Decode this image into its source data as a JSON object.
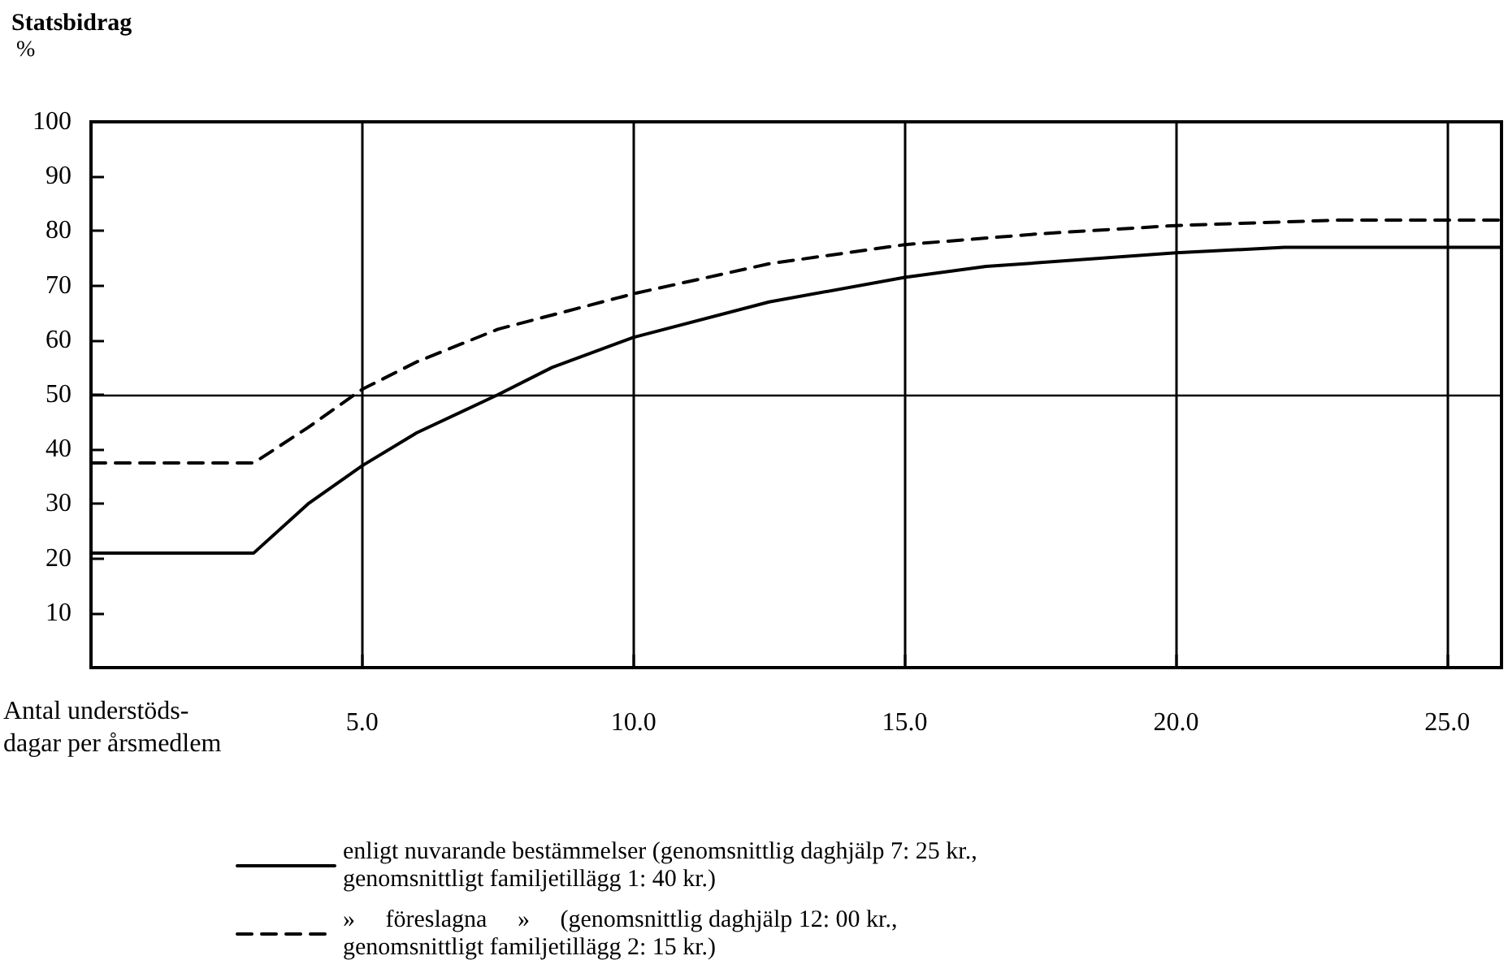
{
  "chart_data": {
    "type": "line",
    "title": "Statsbidrag",
    "ylabel": "%",
    "xlabel": "Antal understöds-\ndagar per årsmedlem",
    "xlim": [
      0,
      26
    ],
    "ylim": [
      0,
      100
    ],
    "xticks": [
      {
        "value": 5,
        "label": "5.0"
      },
      {
        "value": 10,
        "label": "10.0"
      },
      {
        "value": 15,
        "label": "15.0"
      },
      {
        "value": 20,
        "label": "20.0"
      },
      {
        "value": 25,
        "label": "25.0"
      }
    ],
    "yticks": [
      10,
      20,
      30,
      40,
      50,
      60,
      70,
      80,
      90,
      100
    ],
    "grid": "x",
    "legend": "bottom",
    "marker": "none",
    "ref_lines": [
      {
        "axis": "y",
        "value": 50,
        "color": "#000000"
      }
    ],
    "series": [
      {
        "name": "enligt nuvarande bestämmelser (genomsnittlig daghjälp 7: 25 kr.,\ngenomsnittligt familjetillägg 1: 40 kr.)",
        "color": "#000000",
        "line_style": "solid",
        "x": [
          0,
          3,
          4,
          5,
          6,
          7.5,
          8.5,
          10,
          12.5,
          15,
          16.5,
          20,
          22,
          26
        ],
        "values": [
          21,
          21,
          30,
          37,
          43,
          50,
          55,
          60.5,
          67,
          71.5,
          73.5,
          76,
          77,
          77
        ]
      },
      {
        "name": "»     föreslagna     »     (genomsnittlig daghjälp 12: 00 kr.,\ngenomsnittligt familjetillägg 2: 15 kr.)",
        "color": "#000000",
        "line_style": "dashed",
        "x": [
          0,
          3,
          4,
          5,
          6,
          7.5,
          10,
          12.5,
          15,
          17.5,
          20,
          23,
          26
        ],
        "values": [
          37.5,
          37.5,
          44,
          51,
          56,
          62,
          68.5,
          74,
          77.5,
          79.5,
          81,
          82,
          82
        ]
      }
    ]
  }
}
